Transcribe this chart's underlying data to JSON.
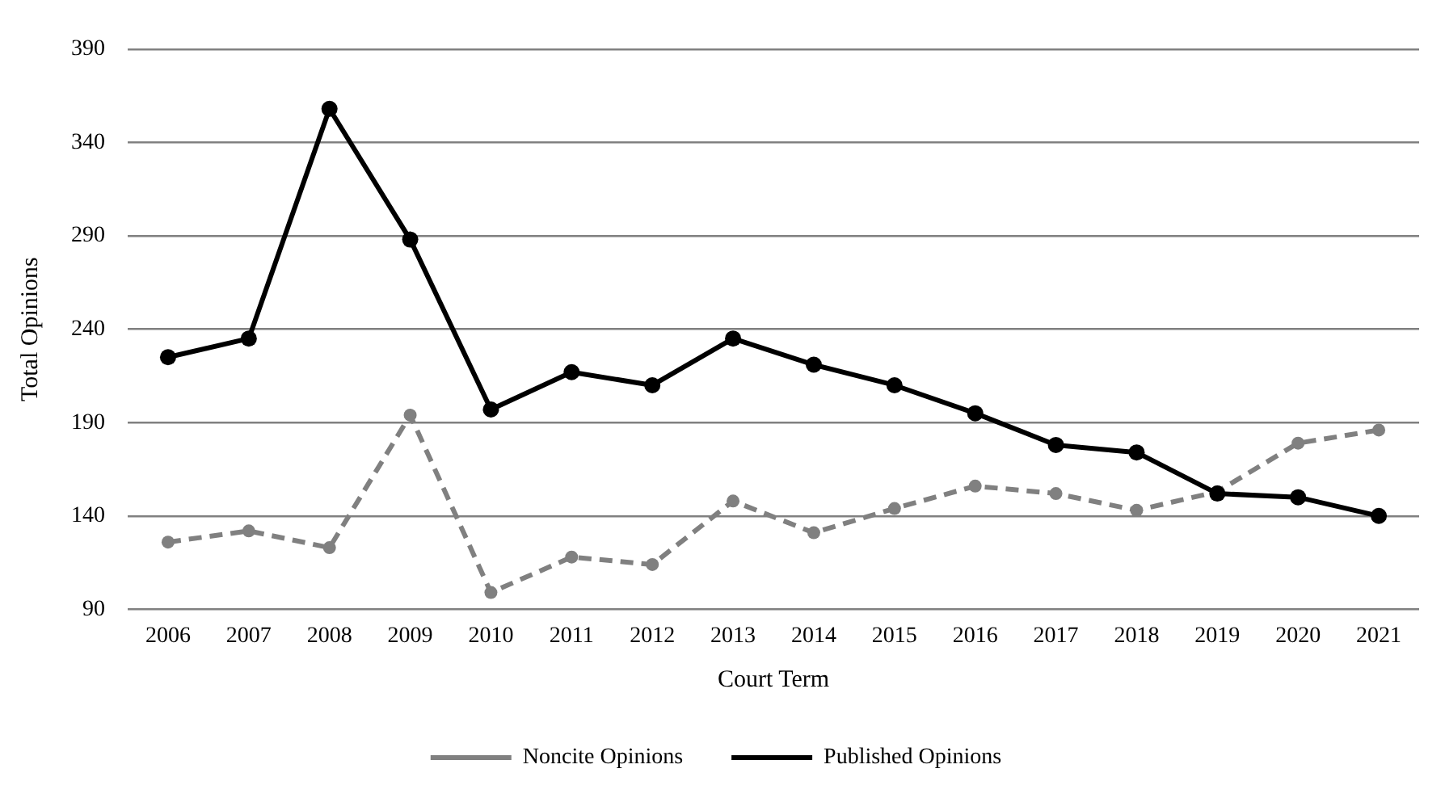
{
  "chart_data": {
    "type": "line",
    "xlabel": "Court Term",
    "ylabel": "Total Opinions",
    "categories": [
      "2006",
      "2007",
      "2008",
      "2009",
      "2010",
      "2011",
      "2012",
      "2013",
      "2014",
      "2015",
      "2016",
      "2017",
      "2018",
      "2019",
      "2020",
      "2021"
    ],
    "series": [
      {
        "name": "Noncite Opinions",
        "color": "#808080",
        "line_style": "dashed",
        "values": [
          126,
          132,
          123,
          194,
          99,
          118,
          114,
          148,
          131,
          144,
          156,
          152,
          143,
          153,
          179,
          186
        ]
      },
      {
        "name": "Published Opinions",
        "color": "#000000",
        "line_style": "solid",
        "values": [
          225,
          235,
          358,
          288,
          197,
          217,
          210,
          235,
          221,
          210,
          195,
          178,
          174,
          152,
          150,
          140
        ]
      }
    ],
    "ylim": [
      90,
      390
    ],
    "yticks": [
      90,
      140,
      190,
      240,
      290,
      340,
      390
    ],
    "grid": "y",
    "legend": "bottom",
    "marker": "circle"
  }
}
